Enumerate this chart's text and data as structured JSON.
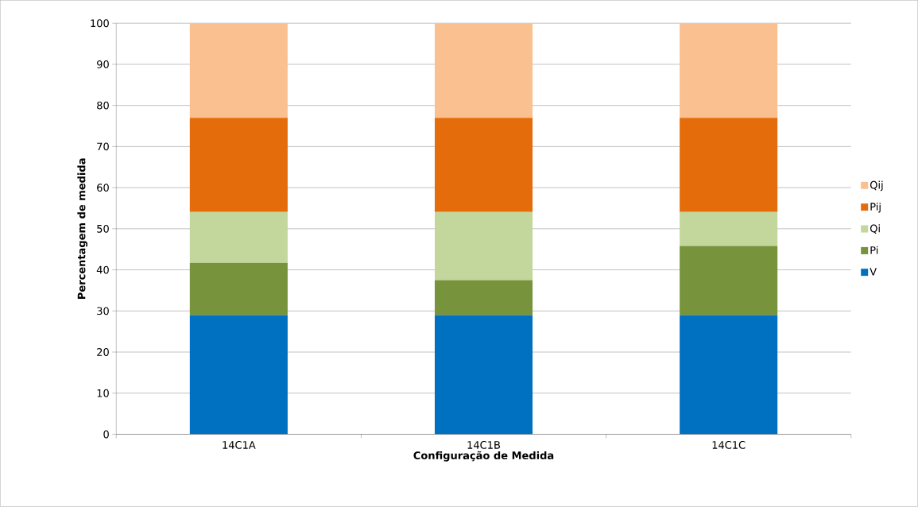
{
  "chart_data": {
    "type": "bar",
    "stacked": true,
    "xlabel": "Configuração de Medida",
    "ylabel": "Percentagem de medida",
    "categories": [
      "14C1A",
      "14C1B",
      "14C1C"
    ],
    "series": [
      {
        "name": "V",
        "color": "#0070c0",
        "values": [
          29,
          29,
          29
        ]
      },
      {
        "name": "Pi",
        "color": "#77933c",
        "values": [
          12.7,
          8.5,
          16.8
        ]
      },
      {
        "name": "Qi",
        "color": "#c3d69b",
        "values": [
          12.4,
          16.6,
          8.3
        ]
      },
      {
        "name": "Pij",
        "color": "#e46c0a",
        "values": [
          22.9,
          22.9,
          22.9
        ]
      },
      {
        "name": "Qij",
        "color": "#fac090",
        "values": [
          23,
          23,
          23
        ]
      }
    ],
    "ylim": [
      0,
      100
    ],
    "yticks": [
      0,
      10,
      20,
      30,
      40,
      50,
      60,
      70,
      80,
      90,
      100
    ],
    "grid": "y",
    "legend": "right"
  }
}
